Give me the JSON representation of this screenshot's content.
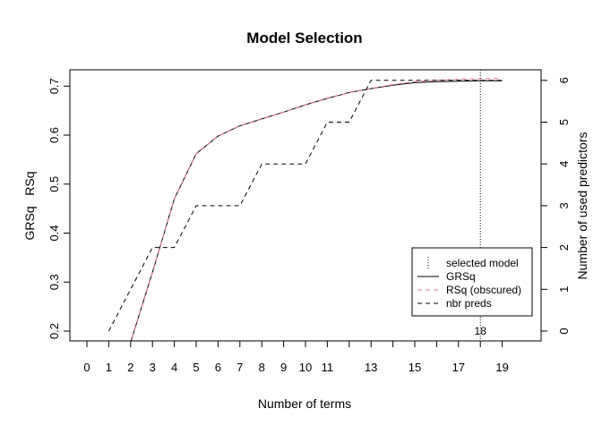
{
  "chart_data": {
    "type": "line",
    "title": "Model Selection",
    "xlabel": "Number of terms",
    "ylabel_left": "GRSq   RSq",
    "ylabel_right": "Number of used predictors",
    "xlim": [
      0,
      19
    ],
    "ylim_left": [
      0.15,
      0.72
    ],
    "ylim_right": [
      0,
      6
    ],
    "x_ticks": [
      {
        "value": 0,
        "label": "0"
      },
      {
        "value": 1,
        "label": "1"
      },
      {
        "value": 2,
        "label": "2"
      },
      {
        "value": 3,
        "label": "3"
      },
      {
        "value": 4,
        "label": "4"
      },
      {
        "value": 5,
        "label": "5"
      },
      {
        "value": 6,
        "label": "6"
      },
      {
        "value": 7,
        "label": "7"
      },
      {
        "value": 8,
        "label": "8"
      },
      {
        "value": 9,
        "label": "9"
      },
      {
        "value": 10,
        "label": "10"
      },
      {
        "value": 11,
        "label": "11"
      },
      {
        "value": 13,
        "label": "13"
      },
      {
        "value": 15,
        "label": "15"
      },
      {
        "value": 17,
        "label": "17"
      },
      {
        "value": 19,
        "label": "19"
      }
    ],
    "x_minor_ticks": [
      12,
      14,
      16,
      18
    ],
    "y_left_ticks": [
      {
        "value": 0.2,
        "label": "0.2"
      },
      {
        "value": 0.3,
        "label": "0.3"
      },
      {
        "value": 0.4,
        "label": "0.4"
      },
      {
        "value": 0.5,
        "label": "0.5"
      },
      {
        "value": 0.6,
        "label": "0.6"
      },
      {
        "value": 0.7,
        "label": "0.7"
      }
    ],
    "y_right_ticks": [
      {
        "value": 0,
        "label": "0"
      },
      {
        "value": 1,
        "label": "1"
      },
      {
        "value": 2,
        "label": "2"
      },
      {
        "value": 3,
        "label": "3"
      },
      {
        "value": 4,
        "label": "4"
      },
      {
        "value": 5,
        "label": "5"
      },
      {
        "value": 6,
        "label": "6"
      }
    ],
    "series": [
      {
        "name": "GRSq",
        "axis": "left",
        "color": "#000000",
        "dash": "solid",
        "x": [
          1.95,
          3,
          4,
          5,
          6,
          7,
          8,
          9,
          10,
          11,
          12,
          13,
          14,
          15,
          16,
          17,
          18,
          19
        ],
        "values": [
          0.17,
          0.32,
          0.47,
          0.562,
          0.598,
          0.619,
          0.633,
          0.647,
          0.662,
          0.675,
          0.687,
          0.695,
          0.702,
          0.707,
          0.709,
          0.71,
          0.711,
          0.711
        ]
      },
      {
        "name": "RSq (obscured)",
        "axis": "left",
        "color": "#e07090",
        "dash": "dashed",
        "x": [
          1.95,
          3,
          4,
          5,
          6,
          7,
          8,
          9,
          10,
          11,
          12,
          13,
          14,
          15,
          16,
          17,
          18,
          19
        ],
        "values": [
          0.17,
          0.32,
          0.47,
          0.562,
          0.598,
          0.619,
          0.633,
          0.647,
          0.662,
          0.675,
          0.687,
          0.695,
          0.703,
          0.709,
          0.712,
          0.714,
          0.715,
          0.716
        ]
      },
      {
        "name": "nbr preds",
        "axis": "right",
        "color": "#000000",
        "dash": "dashed",
        "step": true,
        "x": [
          1,
          2,
          3,
          4,
          5,
          6,
          7,
          8,
          9,
          10,
          11,
          12,
          13,
          14,
          15,
          16,
          17,
          18,
          19
        ],
        "values": [
          0,
          1,
          2,
          2,
          3,
          3,
          3,
          4,
          4,
          4,
          5,
          5,
          6,
          6,
          6,
          6,
          6,
          6,
          6
        ]
      }
    ],
    "selected_model": {
      "name": "selected model",
      "x": 18,
      "label": "18",
      "dash": "dotted"
    },
    "legend": {
      "placement": "bottom-right",
      "entries": [
        {
          "label": "selected model",
          "style": "vertical-dotted",
          "color": "#000000"
        },
        {
          "label": "GRSq",
          "style": "solid",
          "color": "#000000"
        },
        {
          "label": "RSq (obscured)",
          "style": "dashed",
          "color": "#e07090"
        },
        {
          "label": "nbr preds",
          "style": "dashed",
          "color": "#000000"
        }
      ]
    },
    "grid": false
  }
}
